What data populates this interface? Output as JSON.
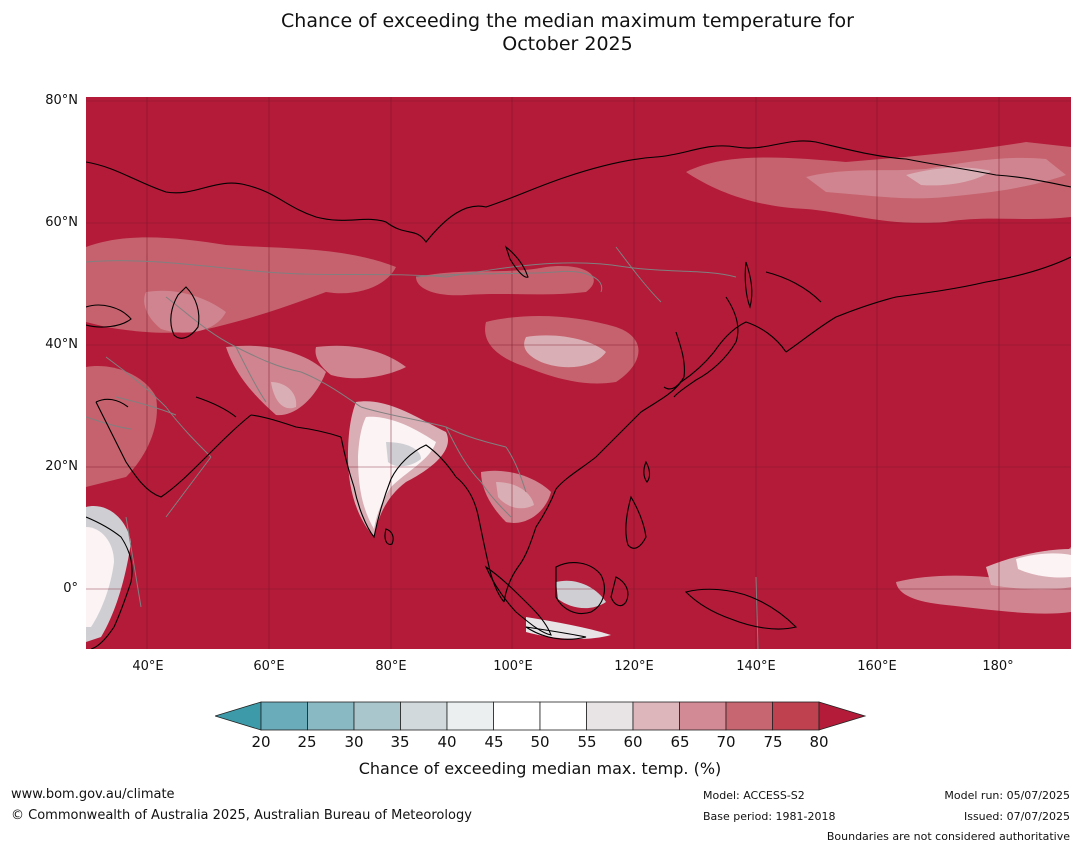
{
  "title_line1": "Chance of exceeding the median maximum temperature for",
  "title_line2": "October 2025",
  "map": {
    "lat_ticks": [
      "80°N",
      "60°N",
      "40°N",
      "20°N",
      "0°"
    ],
    "lon_ticks": [
      "40°E",
      "60°E",
      "80°E",
      "100°E",
      "120°E",
      "140°E",
      "160°E",
      "180°"
    ],
    "background_color": "#b31b39",
    "coastline_color": "#000000",
    "border_color": "#808080",
    "gridline_color": "#7a1528"
  },
  "colorbar": {
    "ticks": [
      "20",
      "25",
      "30",
      "35",
      "40",
      "45",
      "50",
      "55",
      "60",
      "65",
      "70",
      "75",
      "80"
    ],
    "colors": [
      "#3d9ba9",
      "#6aacb9",
      "#89b9c3",
      "#a8c6cb",
      "#d1d9dc",
      "#ebeff0",
      "#ffffff",
      "#ffffff",
      "#e8e4e5",
      "#ddb6bc",
      "#d28a94",
      "#c76670",
      "#bf4150",
      "#b31b39"
    ],
    "label": "Chance of exceeding median max. temp. (%)"
  },
  "footer": {
    "website": "www.bom.gov.au/climate",
    "copyright": "© Commonwealth of Australia 2025, Australian Bureau of Meteorology",
    "model": "Model: ACCESS-S2",
    "base_period": "Base period: 1981-2018",
    "model_run": "Model run: 05/07/2025",
    "issued": "Issued: 07/07/2025",
    "disclaimer": "Boundaries are not considered authoritative"
  }
}
